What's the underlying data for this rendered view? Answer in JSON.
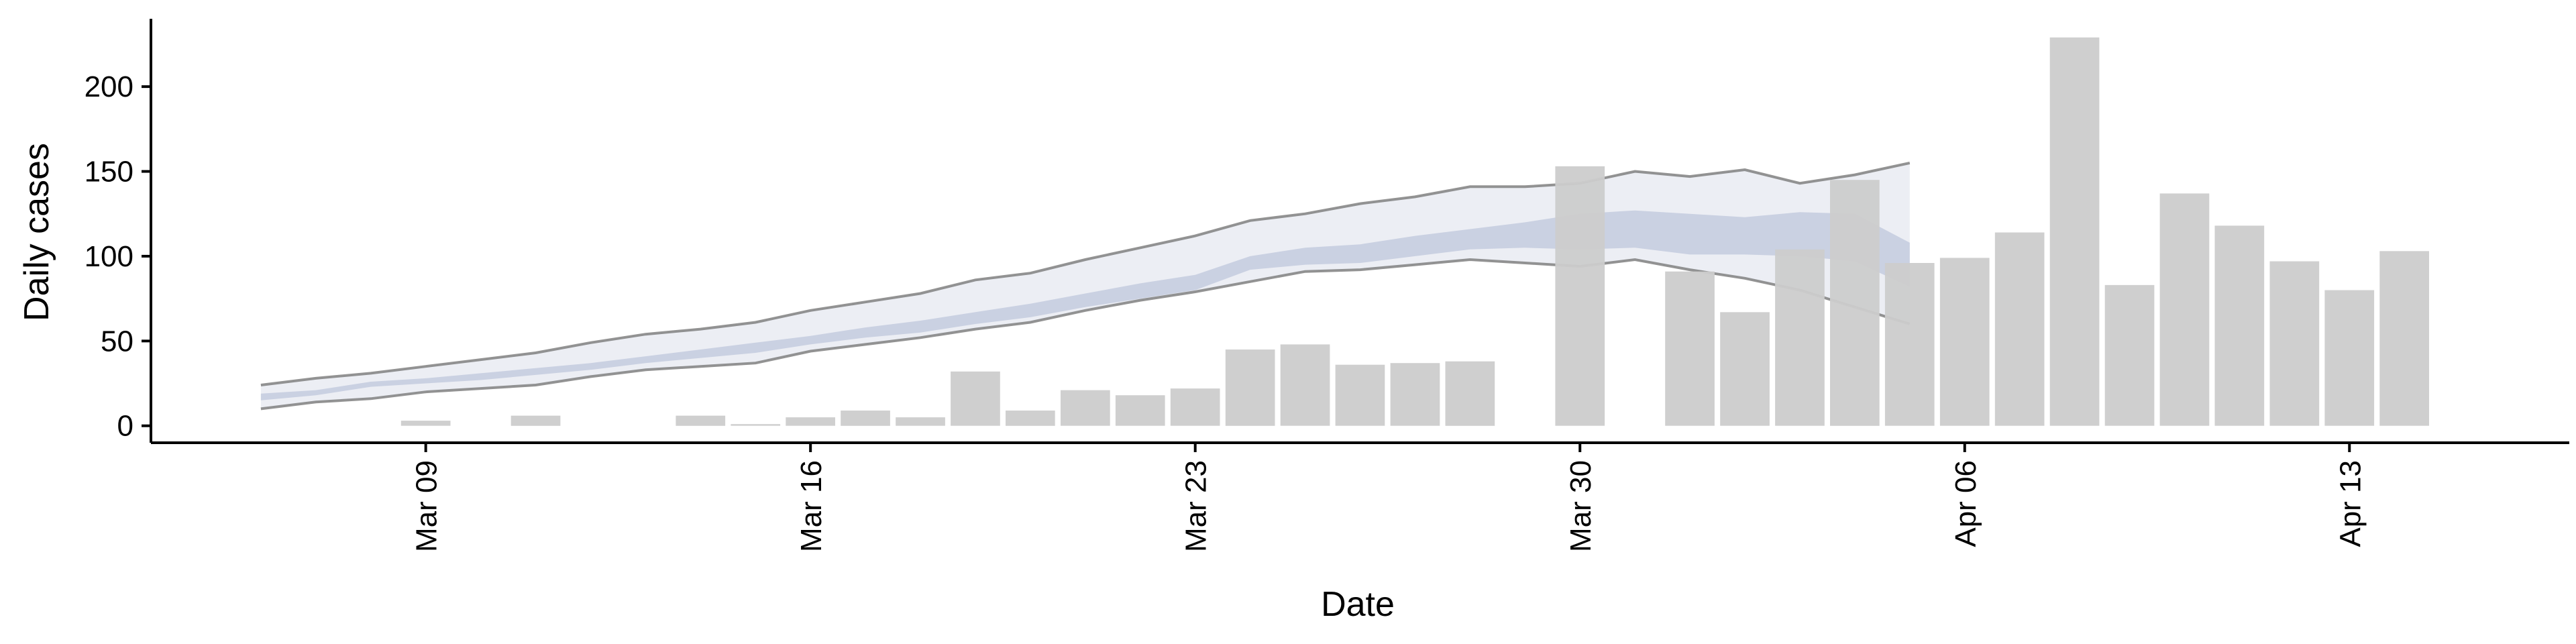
{
  "chart_data": {
    "type": "bar",
    "title": "",
    "xlabel": "Date",
    "ylabel": "Daily cases",
    "ylim": [
      -10,
      240
    ],
    "y_ticks": [
      0,
      50,
      100,
      150,
      200
    ],
    "x_ticks": [
      {
        "date": "2020-03-09",
        "label": "Mar 09"
      },
      {
        "date": "2020-03-16",
        "label": "Mar 16"
      },
      {
        "date": "2020-03-23",
        "label": "Mar 23"
      },
      {
        "date": "2020-03-30",
        "label": "Mar 30"
      },
      {
        "date": "2020-04-06",
        "label": "Apr 06"
      },
      {
        "date": "2020-04-13",
        "label": "Apr 13"
      }
    ],
    "xlim": [
      "2020-03-04",
      "2020-04-17"
    ],
    "grid": false,
    "legend": "none",
    "colors": {
      "bar": "#cccccc",
      "band_outer": "#e9ebf2",
      "band_inner": "#c7cde0",
      "band_line": "#808080"
    },
    "bars": {
      "dates": [
        "2020-03-09",
        "2020-03-11",
        "2020-03-14",
        "2020-03-15",
        "2020-03-16",
        "2020-03-17",
        "2020-03-18",
        "2020-03-19",
        "2020-03-20",
        "2020-03-21",
        "2020-03-22",
        "2020-03-23",
        "2020-03-24",
        "2020-03-25",
        "2020-03-26",
        "2020-03-27",
        "2020-03-28",
        "2020-03-30",
        "2020-04-01",
        "2020-04-02",
        "2020-04-03",
        "2020-04-04",
        "2020-04-05",
        "2020-04-06",
        "2020-04-07",
        "2020-04-08",
        "2020-04-09",
        "2020-04-10",
        "2020-04-11",
        "2020-04-12",
        "2020-04-13",
        "2020-04-14"
      ],
      "values": [
        3,
        6,
        6,
        1,
        5,
        9,
        5,
        32,
        9,
        21,
        18,
        22,
        45,
        48,
        36,
        37,
        38,
        153,
        91,
        67,
        104,
        145,
        96,
        99,
        114,
        229,
        83,
        137,
        118,
        97,
        80,
        103
      ]
    },
    "band": {
      "dates": [
        "2020-03-06",
        "2020-03-07",
        "2020-03-08",
        "2020-03-09",
        "2020-03-10",
        "2020-03-11",
        "2020-03-12",
        "2020-03-13",
        "2020-03-14",
        "2020-03-15",
        "2020-03-16",
        "2020-03-17",
        "2020-03-18",
        "2020-03-19",
        "2020-03-20",
        "2020-03-21",
        "2020-03-22",
        "2020-03-23",
        "2020-03-24",
        "2020-03-25",
        "2020-03-26",
        "2020-03-27",
        "2020-03-28",
        "2020-03-29",
        "2020-03-30",
        "2020-03-31",
        "2020-04-01",
        "2020-04-02",
        "2020-04-03",
        "2020-04-04",
        "2020-04-05"
      ],
      "outer_upper": [
        24,
        28,
        31,
        35,
        39,
        43,
        49,
        54,
        57,
        61,
        68,
        73,
        78,
        86,
        90,
        98,
        105,
        112,
        121,
        125,
        131,
        135,
        141,
        141,
        143,
        150,
        147,
        151,
        143,
        148,
        155
      ],
      "outer_lower": [
        10,
        14,
        16,
        20,
        22,
        24,
        29,
        33,
        35,
        37,
        44,
        48,
        52,
        57,
        61,
        68,
        74,
        79,
        85,
        91,
        92,
        95,
        98,
        96,
        94,
        98,
        92,
        87,
        80,
        70,
        60
      ],
      "inner_upper": [
        19,
        21,
        26,
        28,
        31,
        34,
        37,
        41,
        45,
        49,
        53,
        58,
        62,
        67,
        72,
        78,
        84,
        89,
        100,
        105,
        107,
        112,
        116,
        120,
        125,
        127,
        125,
        123,
        126,
        125,
        108
      ],
      "inner_lower": [
        15,
        18,
        23,
        25,
        27,
        30,
        33,
        37,
        40,
        43,
        48,
        52,
        55,
        60,
        64,
        70,
        75,
        80,
        92,
        95,
        96,
        100,
        104,
        105,
        104,
        105,
        101,
        101,
        100,
        97,
        82
      ]
    }
  }
}
